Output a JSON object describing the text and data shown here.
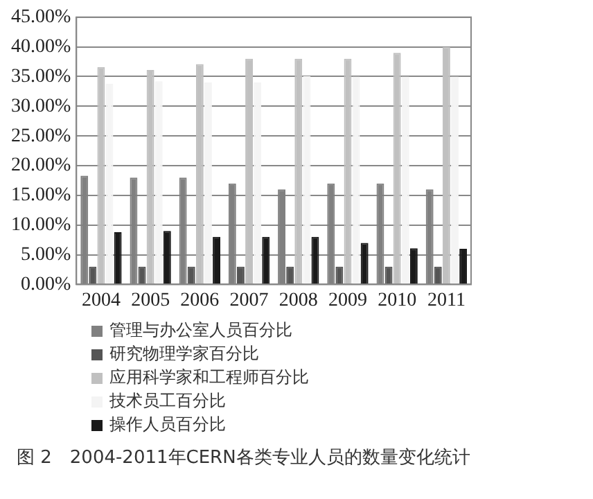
{
  "chart_data": {
    "type": "bar",
    "title": "图 2　2004-2011年CERN各类专业人员的数量变化统计",
    "categories": [
      "2004",
      "2005",
      "2006",
      "2007",
      "2008",
      "2009",
      "2010",
      "2011"
    ],
    "series": [
      {
        "name": "管理与办公室人员百分比",
        "color": "#808080",
        "values": [
          18.3,
          18,
          18,
          17,
          16,
          17,
          17,
          16
        ]
      },
      {
        "name": "研究物理学家百分比",
        "color": "#555555",
        "values": [
          3,
          3,
          3,
          3,
          3,
          3,
          3,
          3
        ]
      },
      {
        "name": "应用科学家和工程师百分比",
        "color": "#c0c0c0",
        "values": [
          36.6,
          36.1,
          37.1,
          38,
          38,
          38,
          39,
          40
        ]
      },
      {
        "name": "技术员工百分比",
        "color": "#f4f4f4",
        "values": [
          33.8,
          34.2,
          34,
          34,
          35.1,
          35,
          35,
          35
        ]
      },
      {
        "name": "操作人员百分比",
        "color": "#1a1a1a",
        "values": [
          8.8,
          9,
          8,
          8,
          8,
          7,
          6.1,
          6
        ]
      }
    ],
    "ylim": [
      0,
      45
    ],
    "yticks": [
      {
        "value": 0,
        "label": "0.00%"
      },
      {
        "value": 5,
        "label": "5.00%"
      },
      {
        "value": 10,
        "label": "10.00%"
      },
      {
        "value": 15,
        "label": "15.00%"
      },
      {
        "value": 20,
        "label": "20.00%"
      },
      {
        "value": 25,
        "label": "25.00%"
      },
      {
        "value": 30,
        "label": "30.00%"
      },
      {
        "value": 35,
        "label": "35.00%"
      },
      {
        "value": 40,
        "label": "40.00%"
      },
      {
        "value": 45,
        "label": "45.00%"
      }
    ],
    "grid": "y",
    "legend": "bottom"
  }
}
